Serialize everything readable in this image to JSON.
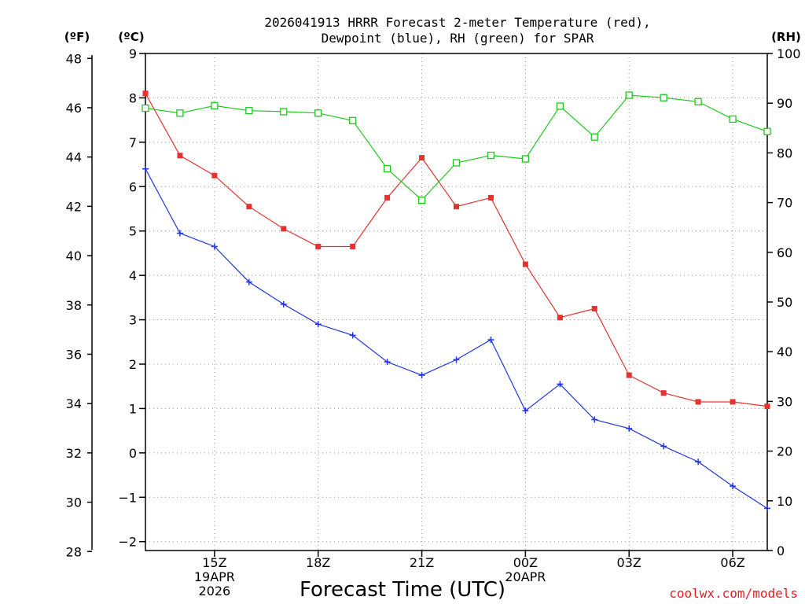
{
  "chart_data": {
    "type": "line",
    "title_line1": "2026041913 HRRR Forecast 2-meter Temperature (red),",
    "title_line2": "Dewpoint (blue), RH (green) for SPAR",
    "xlabel": "Forecast Time (UTC)",
    "credit": "coolwx.com/models",
    "unit_f": "(ºF)",
    "unit_c": "(ºC)",
    "unit_rh": "(RH)",
    "hours": [
      13,
      14,
      15,
      16,
      17,
      18,
      19,
      20,
      21,
      22,
      23,
      24,
      25,
      26,
      27,
      28,
      29,
      30,
      31
    ],
    "x_ticks": [
      {
        "hour": 15,
        "lines": [
          "15Z",
          "19APR",
          "2026"
        ]
      },
      {
        "hour": 18,
        "lines": [
          "18Z"
        ]
      },
      {
        "hour": 21,
        "lines": [
          "21Z"
        ]
      },
      {
        "hour": 24,
        "lines": [
          "00Z",
          "20APR"
        ]
      },
      {
        "hour": 27,
        "lines": [
          "03Z"
        ]
      },
      {
        "hour": 30,
        "lines": [
          "06Z"
        ]
      }
    ],
    "y_celsius": {
      "range": [
        -2.2,
        9.0
      ],
      "ticks": [
        -2,
        -1,
        0,
        1,
        2,
        3,
        4,
        5,
        6,
        7,
        8,
        9
      ]
    },
    "y_fahrenheit": {
      "ticks": [
        28,
        30,
        32,
        34,
        36,
        38,
        40,
        42,
        44,
        46,
        48
      ]
    },
    "y_rh": {
      "range": [
        0,
        100
      ],
      "ticks": [
        0,
        10,
        20,
        30,
        40,
        50,
        60,
        70,
        80,
        90,
        100
      ]
    },
    "series": [
      {
        "name": "Temperature",
        "axis": "celsius",
        "color": "#e8302f",
        "marker": "filled-square",
        "values": [
          8.1,
          6.7,
          6.25,
          5.55,
          5.05,
          4.65,
          4.65,
          5.75,
          6.65,
          5.55,
          5.75,
          4.25,
          3.05,
          3.25,
          1.75,
          1.35,
          1.15,
          1.15,
          1.05
        ]
      },
      {
        "name": "Dewpoint",
        "axis": "celsius",
        "color": "#2035e0",
        "marker": "plus",
        "values": [
          6.4,
          4.95,
          4.65,
          3.85,
          3.35,
          2.9,
          2.65,
          2.05,
          1.75,
          2.1,
          2.55,
          0.95,
          1.55,
          0.75,
          0.55,
          0.15,
          -0.2,
          -0.75,
          -1.25
        ]
      },
      {
        "name": "RH",
        "axis": "rh",
        "color": "#1ec81e",
        "marker": "open-square",
        "values": [
          89,
          88,
          89.5,
          88.5,
          88.3,
          88,
          86.5,
          76.8,
          70.5,
          78,
          79.5,
          78.8,
          89.4,
          83.2,
          91.6,
          91.1,
          90.3,
          86.8,
          84.3
        ]
      }
    ]
  }
}
